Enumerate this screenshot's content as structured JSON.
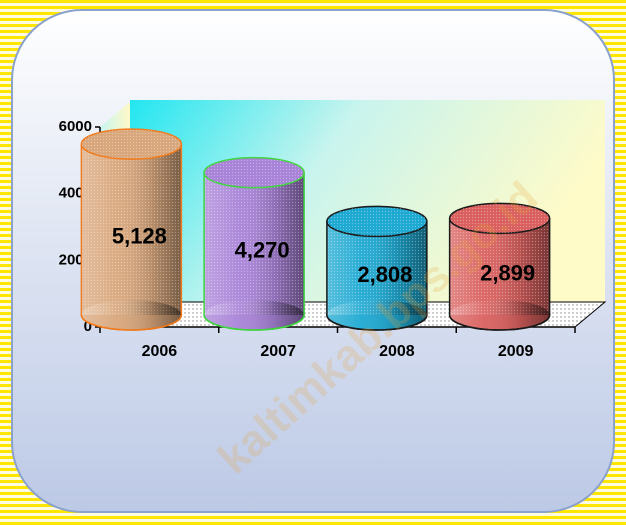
{
  "chart_data": {
    "type": "bar",
    "categories": [
      "2006",
      "2007",
      "2008",
      "2009"
    ],
    "values": [
      5128,
      4270,
      2808,
      2899
    ],
    "value_labels": [
      "5,128",
      "4,270",
      "2,808",
      "2,899"
    ],
    "colors": [
      "#d9a77c",
      "#a983d8",
      "#1ea9d2",
      "#d9605e"
    ],
    "outline_colors": [
      "#f07a1c",
      "#3fd43f",
      "#1a1a1a",
      "#1a1a1a"
    ],
    "ylim": [
      0,
      6000
    ],
    "yticks": [
      0,
      2000,
      4000,
      6000
    ],
    "grid": false,
    "watermark": "kaltimkab.bps.go.id"
  }
}
